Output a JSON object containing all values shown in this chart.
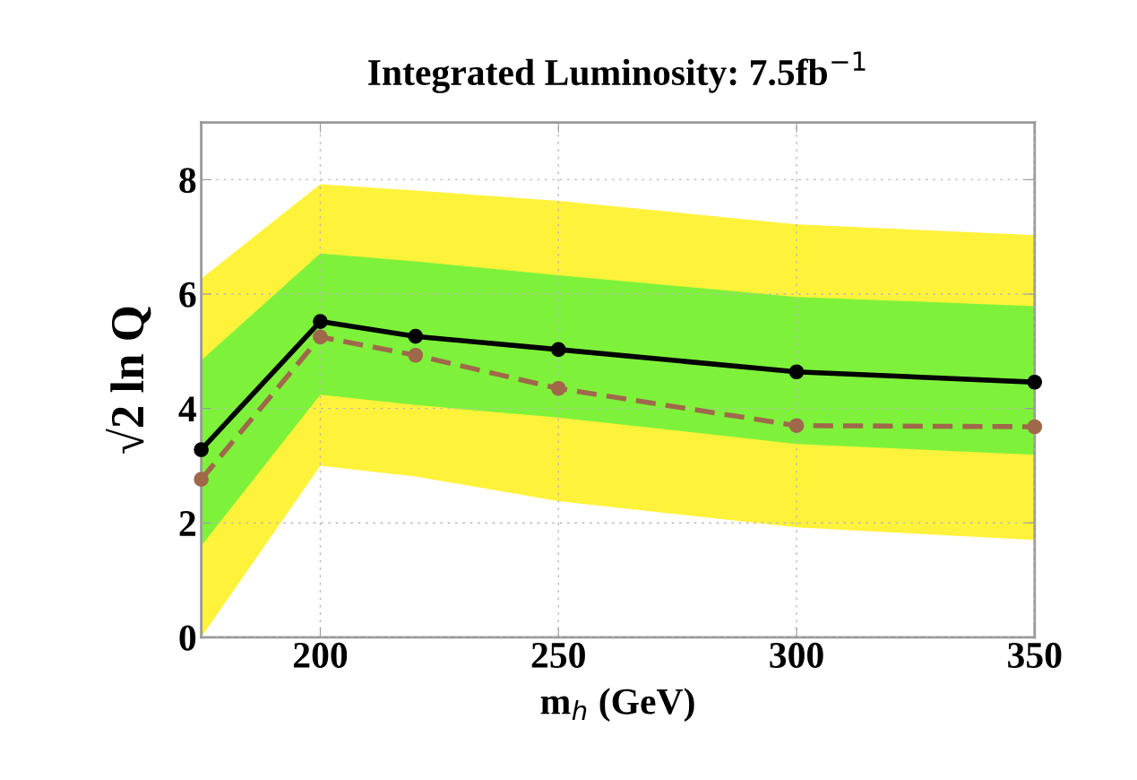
{
  "chart_data": {
    "type": "line",
    "title": "Integrated Luminosity: 7.5fb$^{−1}$",
    "xlabel": "m$_{h}$ (GeV)",
    "ylabel": "√2 ln Q",
    "x": [
      175,
      200,
      220,
      250,
      300,
      350
    ],
    "series": [
      {
        "type": "area",
        "color": "#fff23a",
        "values": [
          null,
          null,
          null,
          null,
          null,
          null
        ],
        "lower": [
          0,
          3.0,
          2.81,
          2.38,
          1.92,
          1.7
        ],
        "upper": [
          6.27,
          7.92,
          7.81,
          7.63,
          7.22,
          7.03
        ]
      },
      {
        "type": "area",
        "color": "#7ef23a",
        "values": [
          null,
          null,
          null,
          null,
          null,
          null
        ],
        "lower": [
          1.6,
          4.24,
          4.06,
          3.84,
          3.38,
          3.19
        ],
        "upper": [
          4.84,
          6.71,
          6.57,
          6.33,
          5.95,
          5.79
        ]
      },
      {
        "color": "#000000",
        "line_style": "solid",
        "values": [
          3.28,
          5.52,
          5.26,
          5.03,
          4.64,
          4.46
        ]
      },
      {
        "color": "#a0684a",
        "line_style": "dashed",
        "values": [
          2.76,
          5.25,
          4.93,
          4.35,
          3.7,
          3.68
        ]
      }
    ],
    "marker": "circle",
    "xlim": [
      175,
      350
    ],
    "xticks": [
      200,
      250,
      300,
      350
    ],
    "ylim": [
      0,
      9
    ],
    "yticks": [
      0,
      2,
      4,
      6,
      8
    ],
    "grid": true,
    "legend": false
  }
}
